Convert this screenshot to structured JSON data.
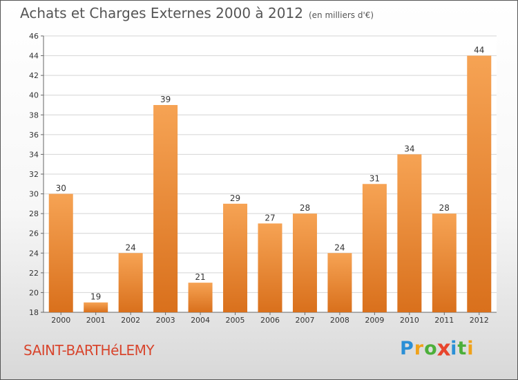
{
  "chart_data": {
    "type": "bar",
    "title": "Achats et Charges Externes 2000 à 2012",
    "subtitle": "(en milliers d'€)",
    "categories": [
      "2000",
      "2001",
      "2002",
      "2003",
      "2004",
      "2005",
      "2006",
      "2007",
      "2008",
      "2009",
      "2010",
      "2011",
      "2012"
    ],
    "values": [
      30,
      19,
      24,
      39,
      21,
      29,
      27,
      28,
      24,
      31,
      34,
      28,
      44
    ],
    "ylim": [
      18,
      46
    ],
    "yticks": [
      18,
      20,
      22,
      24,
      26,
      28,
      30,
      32,
      34,
      36,
      38,
      40,
      42,
      44,
      46
    ],
    "grid": true,
    "bar_color": "#e8893a"
  },
  "location": "SAINT-BARTHéLEMY",
  "logo": {
    "text": "Proxiti",
    "letters": [
      {
        "char": "P",
        "color": "#2a8fd6"
      },
      {
        "char": "r",
        "color": "#f0a21a"
      },
      {
        "char": "o",
        "color": "#4caf3a"
      },
      {
        "char": "x",
        "color": "#e8452d"
      },
      {
        "char": "i",
        "color": "#2a8fd6"
      },
      {
        "char": "t",
        "color": "#4caf3a"
      },
      {
        "char": "i",
        "color": "#f0a21a"
      }
    ]
  }
}
